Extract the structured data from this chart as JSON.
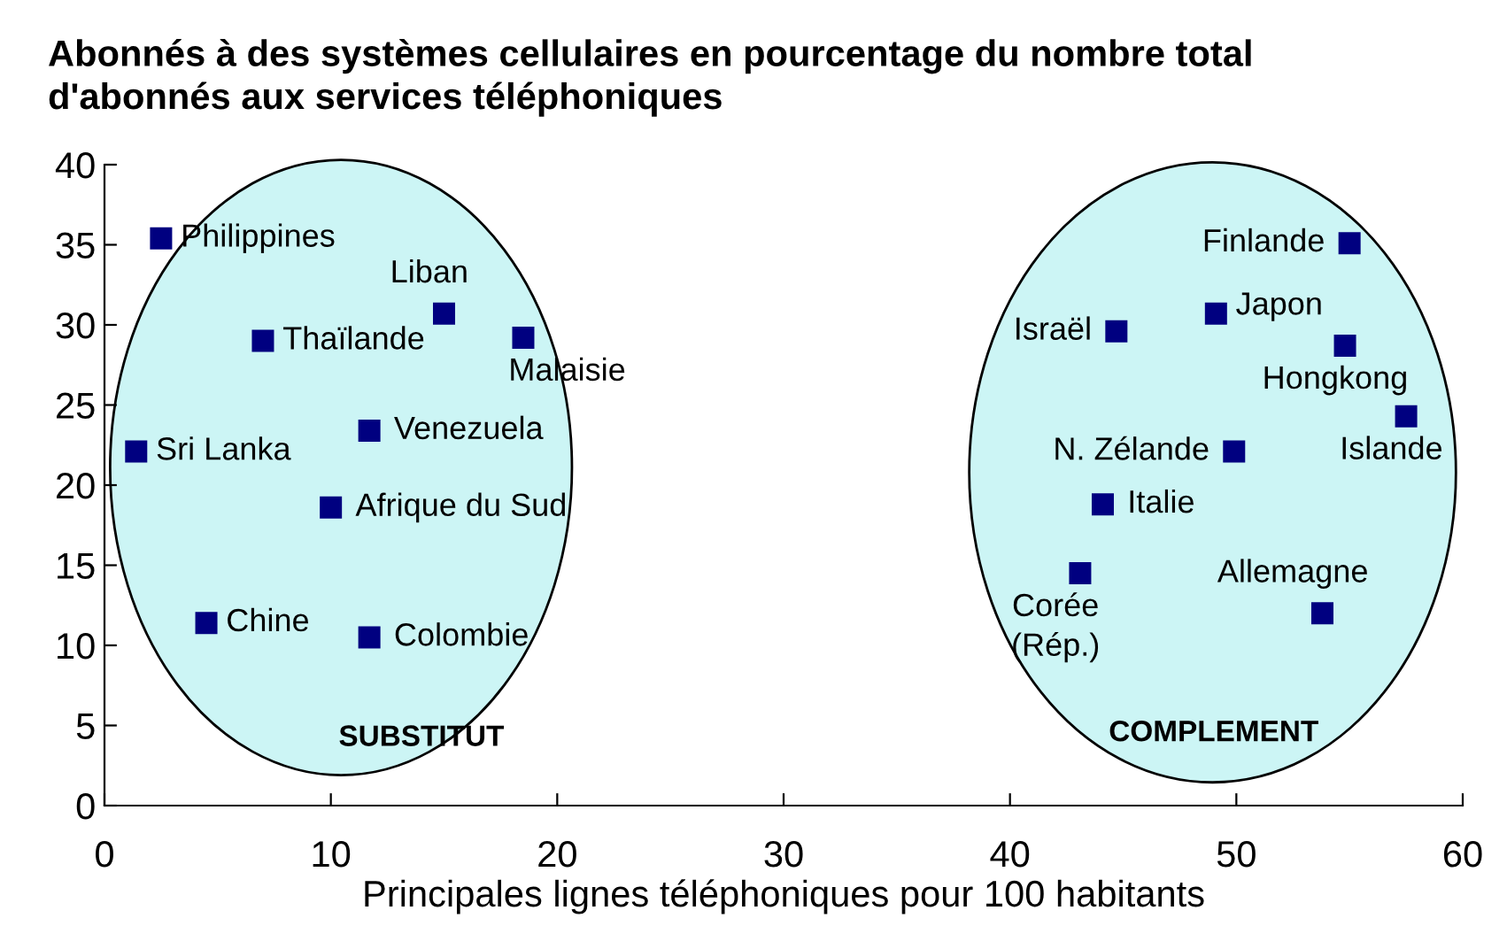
{
  "chart_data": {
    "type": "scatter",
    "title": "Abonnés à des systèmes cellulaires en pourcentage du nombre total\nd'abonnés aux services téléphoniques",
    "xlabel": "Principales lignes téléphoniques pour 100 habitants",
    "marker": "square",
    "grid": false,
    "legend": false,
    "xlim": [
      0,
      60
    ],
    "xticks": [
      0,
      10,
      20,
      30,
      40,
      50,
      60
    ],
    "ylim": [
      0,
      40
    ],
    "yticks": [
      0,
      5,
      10,
      15,
      20,
      25,
      30,
      35,
      40
    ],
    "series": [
      {
        "name": "Philippines",
        "color": "#000080",
        "x": [
          2.5
        ],
        "values": [
          35.4
        ]
      },
      {
        "name": "Liban",
        "color": "#000080",
        "x": [
          15.0
        ],
        "values": [
          30.7
        ]
      },
      {
        "name": "Thaïlande",
        "color": "#000080",
        "x": [
          7.0
        ],
        "values": [
          29.0
        ]
      },
      {
        "name": "Malaisie",
        "color": "#000080",
        "x": [
          18.5
        ],
        "values": [
          29.2
        ]
      },
      {
        "name": "Sri Lanka",
        "color": "#000080",
        "x": [
          1.4
        ],
        "values": [
          22.1
        ]
      },
      {
        "name": "Venezuela",
        "color": "#000080",
        "x": [
          11.7
        ],
        "values": [
          23.4
        ]
      },
      {
        "name": "Afrique du Sud",
        "color": "#000080",
        "x": [
          10.0
        ],
        "values": [
          18.6
        ]
      },
      {
        "name": "Chine",
        "color": "#000080",
        "x": [
          4.5
        ],
        "values": [
          11.4
        ]
      },
      {
        "name": "Colombie",
        "color": "#000080",
        "x": [
          11.7
        ],
        "values": [
          10.5
        ]
      },
      {
        "name": "Finlande",
        "color": "#000080",
        "x": [
          55.0
        ],
        "values": [
          35.1
        ]
      },
      {
        "name": "Israël",
        "color": "#000080",
        "x": [
          44.7
        ],
        "values": [
          29.6
        ]
      },
      {
        "name": "Japon",
        "color": "#000080",
        "x": [
          49.1
        ],
        "values": [
          30.7
        ]
      },
      {
        "name": "Hongkong",
        "color": "#000080",
        "x": [
          54.8
        ],
        "values": [
          28.7
        ]
      },
      {
        "name": "Islande",
        "color": "#000080",
        "x": [
          57.5
        ],
        "values": [
          24.3
        ]
      },
      {
        "name": "N. Zélande",
        "color": "#000080",
        "x": [
          49.9
        ],
        "values": [
          22.1
        ]
      },
      {
        "name": "Italie",
        "color": "#000080",
        "x": [
          44.1
        ],
        "values": [
          18.8
        ]
      },
      {
        "name": "Corée\n(Rép.)",
        "color": "#000080",
        "x": [
          43.1
        ],
        "values": [
          14.5
        ]
      },
      {
        "name": "Allemagne",
        "color": "#000080",
        "x": [
          53.8
        ],
        "values": [
          12.0
        ]
      }
    ],
    "annotations": [
      "SUBSTITUT",
      "COMPLEMENT"
    ]
  }
}
